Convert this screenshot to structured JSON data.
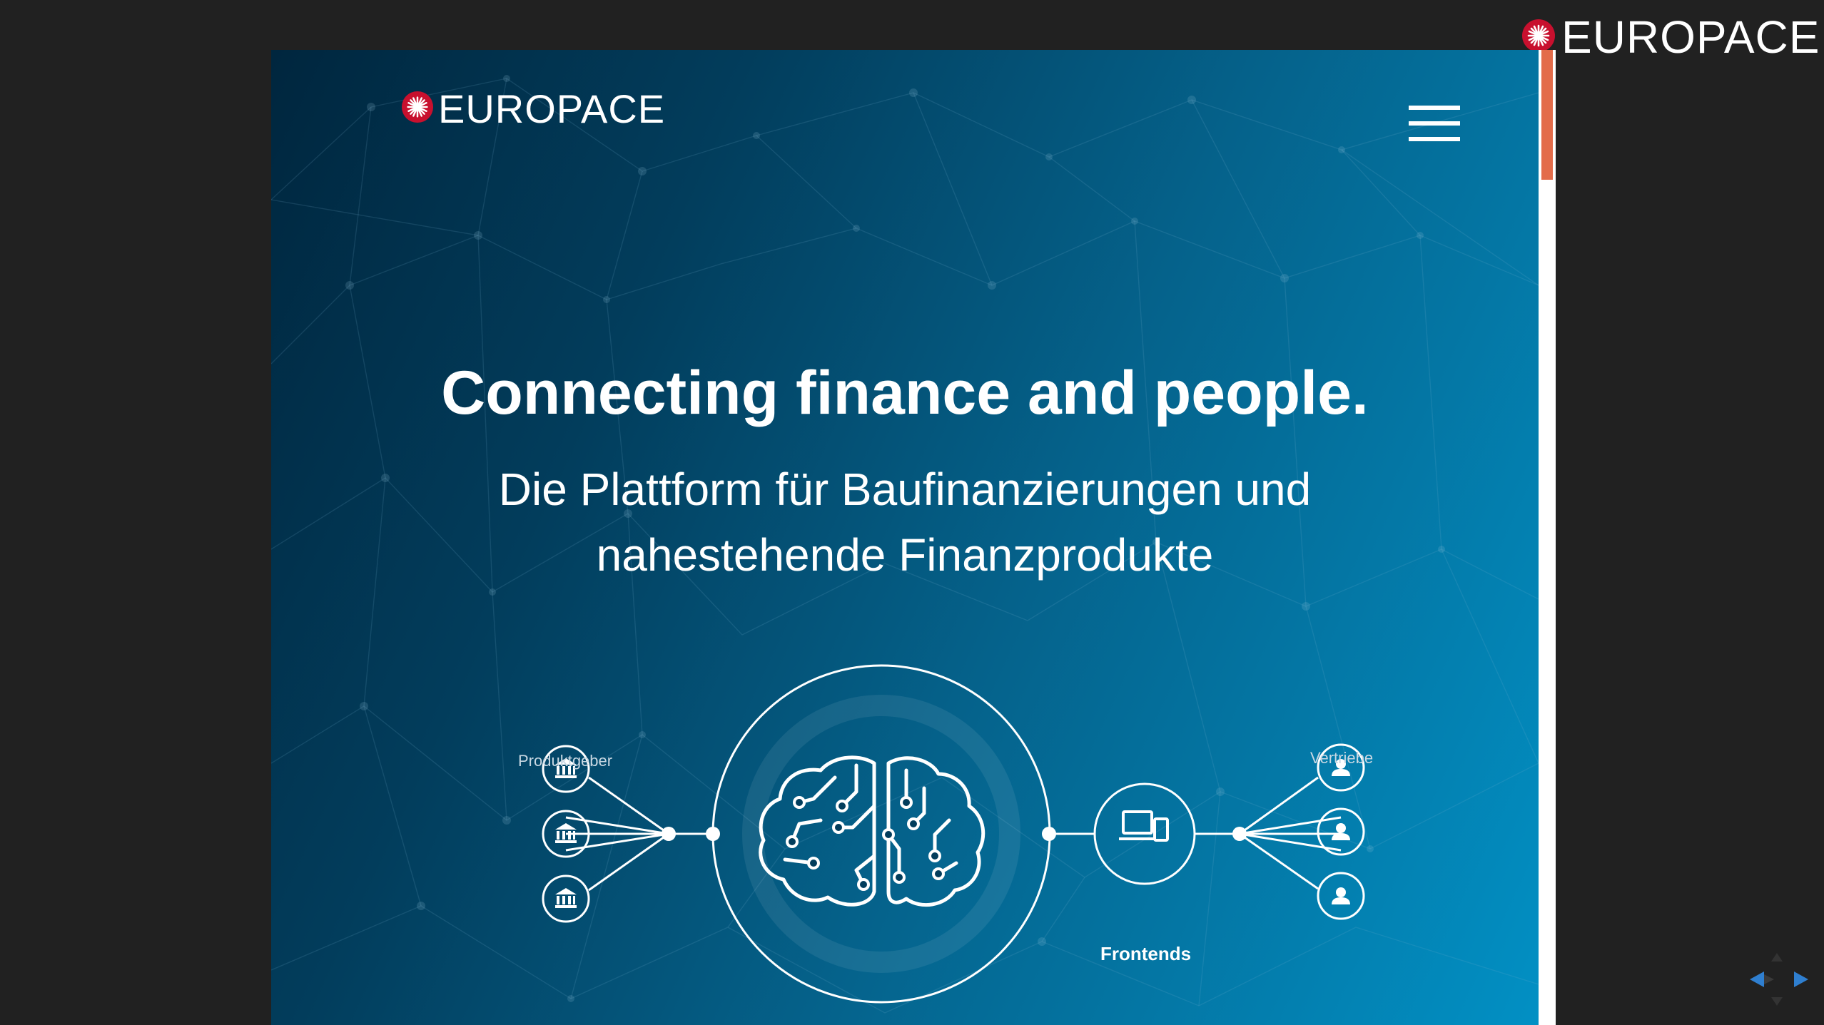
{
  "corner_brand": {
    "name": "EUROPACE"
  },
  "site": {
    "brand": "EUROPACE",
    "menu_icon": "hamburger-menu-icon",
    "hero": {
      "title": "Connecting finance and people.",
      "subtitle_line1": "Die Plattform für Baufinanzierungen und",
      "subtitle_line2": "nahestehende Finanzprodukte"
    },
    "diagram": {
      "left_label": "Produktgeber",
      "right_label": "Vertriebe",
      "center_label": "Frontends",
      "left_icon": "bank-icon",
      "center_icon": "brain-circuit-icon",
      "frontend_icon": "devices-icon",
      "right_icon": "user-icon"
    }
  },
  "colors": {
    "background": "#212121",
    "gradient_dark": "#00263e",
    "gradient_light": "#0290c4",
    "logo_red": "#c8102e",
    "scroll_thumb": "#e36c4a",
    "nav_arrow": "#2f7fd0"
  },
  "nav": {
    "prev_icon": "arrow-left-icon",
    "next_icon": "arrow-right-icon"
  }
}
